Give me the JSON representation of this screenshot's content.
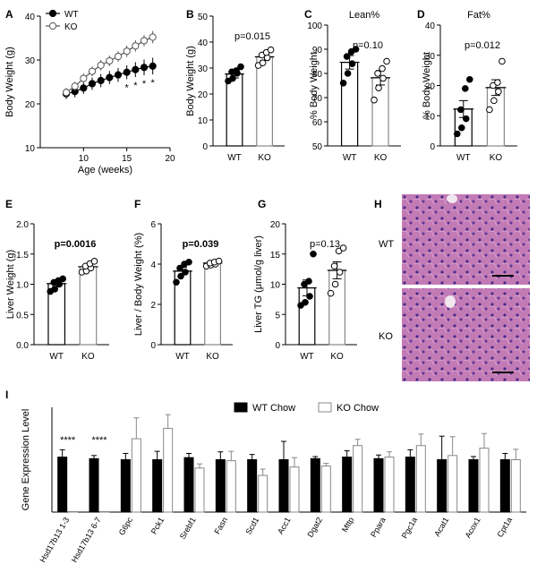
{
  "colors": {
    "wt": "#000000",
    "ko": "#ffffff",
    "ko_stroke": "#888888",
    "axis": "#000000",
    "tissue": "#b56aa6",
    "nuclei": "#4a2b8a"
  },
  "chart_data": [
    {
      "panel": "A",
      "type": "line",
      "ylabel": "Body Weight (g)",
      "xlabel": "Age (weeks)",
      "xlim": [
        5,
        20
      ],
      "ylim": [
        10,
        40
      ],
      "xticks": [
        10,
        15,
        20
      ],
      "yticks": [
        10,
        20,
        30,
        40
      ],
      "x": [
        8,
        9,
        10,
        11,
        12,
        13,
        14,
        15,
        16,
        17,
        18
      ],
      "series": [
        {
          "name": "WT",
          "values": [
            22.3,
            22.8,
            23.6,
            24.6,
            25.3,
            26.0,
            26.6,
            27.2,
            27.8,
            28.3,
            28.6
          ],
          "err": [
            1.2,
            1.3,
            1.3,
            1.4,
            1.5,
            1.5,
            1.6,
            1.6,
            1.7,
            1.8,
            1.9
          ]
        },
        {
          "name": "KO",
          "values": [
            22.6,
            24.0,
            25.8,
            27.4,
            28.8,
            29.8,
            30.8,
            32.0,
            33.2,
            34.4,
            35.2
          ],
          "err": [
            1.0,
            1.0,
            1.1,
            1.1,
            1.2,
            1.2,
            1.2,
            1.3,
            1.3,
            1.3,
            1.4
          ]
        }
      ],
      "sig_label": "*",
      "sig_x": [
        15,
        16,
        17,
        18
      ]
    },
    {
      "panel": "B",
      "type": "bar",
      "ylabel": "Body Weight (g)",
      "ylim": [
        0,
        50
      ],
      "yticks": [
        0,
        10,
        20,
        30,
        40,
        50
      ],
      "categories": [
        "WT",
        "KO"
      ],
      "values": [
        27.7,
        34.3
      ],
      "err": [
        1.5,
        1.4
      ],
      "points": [
        [
          25,
          26,
          28,
          28.5,
          29,
          30.5
        ],
        [
          31,
          32,
          34,
          35,
          36,
          37
        ]
      ],
      "annotation": "p=0.015",
      "annotation_bold": false
    },
    {
      "panel": "C",
      "title": "Lean%",
      "type": "bar",
      "ylabel": "% Body Weight",
      "ylim": [
        50,
        100
      ],
      "yticks": [
        50,
        60,
        70,
        80,
        90,
        100
      ],
      "categories": [
        "WT",
        "KO"
      ],
      "values": [
        84.6,
        78.2
      ],
      "err": [
        2.8,
        3.0
      ],
      "points": [
        [
          76,
          80,
          84,
          87,
          89,
          90
        ],
        [
          69,
          74,
          78,
          80,
          82,
          85
        ]
      ],
      "annotation": "p=0.10",
      "annotation_bold": false
    },
    {
      "panel": "D",
      "title": "Fat%",
      "type": "bar",
      "ylabel": "% Body Weight",
      "ylim": [
        0,
        40
      ],
      "yticks": [
        0,
        10,
        20,
        30,
        40
      ],
      "categories": [
        "WT",
        "KO"
      ],
      "values": [
        12.2,
        19.3
      ],
      "err": [
        2.8,
        2.6
      ],
      "points": [
        [
          4,
          6,
          9,
          12,
          19,
          22
        ],
        [
          12,
          15,
          18,
          20,
          21,
          28
        ]
      ],
      "annotation": "p=0.012",
      "annotation_bold": false
    },
    {
      "panel": "E",
      "type": "bar",
      "ylabel": "Liver Weight (g)",
      "ylim": [
        0,
        2.0
      ],
      "yticks": [
        0.0,
        0.5,
        1.0,
        1.5,
        2.0
      ],
      "categories": [
        "WT",
        "KO"
      ],
      "values": [
        1.01,
        1.29
      ],
      "err": [
        0.05,
        0.04
      ],
      "points": [
        [
          0.88,
          0.92,
          1.0,
          1.03,
          1.06,
          1.09
        ],
        [
          1.2,
          1.22,
          1.27,
          1.3,
          1.34,
          1.38
        ]
      ],
      "annotation": "p=0.0016",
      "annotation_bold": true
    },
    {
      "panel": "F",
      "type": "bar",
      "ylabel": "Liver / Body Weight (%)",
      "ylim": [
        0,
        6
      ],
      "yticks": [
        0,
        2,
        4,
        6
      ],
      "categories": [
        "WT",
        "KO"
      ],
      "values": [
        3.65,
        4.05
      ],
      "err": [
        0.18,
        0.07
      ],
      "points": [
        [
          3.1,
          3.4,
          3.6,
          3.8,
          4.0,
          4.1
        ],
        [
          3.9,
          3.95,
          4.0,
          4.05,
          4.1,
          4.15
        ]
      ],
      "annotation": "p=0.039",
      "annotation_bold": true
    },
    {
      "panel": "G",
      "type": "bar",
      "ylabel": "Liver TG (μmol/g liver)",
      "ylim": [
        0,
        20
      ],
      "yticks": [
        0,
        5,
        10,
        15,
        20
      ],
      "categories": [
        "WT",
        "KO"
      ],
      "values": [
        9.4,
        12.3
      ],
      "err": [
        1.3,
        1.4
      ],
      "points": [
        [
          6.5,
          7.0,
          8.0,
          10.0,
          10.5,
          15.0
        ],
        [
          8.5,
          10.0,
          12.0,
          13.0,
          15.5,
          16.0
        ]
      ],
      "annotation": "p=0.13",
      "annotation_bold": false
    },
    {
      "panel": "I",
      "type": "bar",
      "ylabel": "Gene Expression Level",
      "ylim": [
        0,
        2.0
      ],
      "categories": [
        "Hsd17b13 1-3",
        "Hsd17b13 6-7",
        "G6pc",
        "Pck1",
        "Srebf1",
        "Fasn",
        "Scd1",
        "Acc1",
        "Dgat2",
        "Mttp",
        "Ppara",
        "Pgc1a",
        "Acat1",
        "Acox1",
        "Cpt1a"
      ],
      "series": [
        {
          "name": "WT Chow",
          "values": [
            1.05,
            1.02,
            1.0,
            1.0,
            1.04,
            1.0,
            1.0,
            1.0,
            1.02,
            1.05,
            1.02,
            1.05,
            1.0,
            1.0,
            1.0
          ],
          "err": [
            0.14,
            0.06,
            0.12,
            0.16,
            0.08,
            0.15,
            0.1,
            0.35,
            0.04,
            0.12,
            0.07,
            0.14,
            0.45,
            0.06,
            0.12
          ]
        },
        {
          "name": "KO Chow",
          "values": [
            0.01,
            0.01,
            1.4,
            1.6,
            0.84,
            0.98,
            0.7,
            0.86,
            0.88,
            1.27,
            1.05,
            1.27,
            1.08,
            1.22,
            1.0
          ],
          "err": [
            0,
            0,
            0.4,
            0.26,
            0.08,
            0.18,
            0.12,
            0.18,
            0.05,
            0.12,
            0.1,
            0.22,
            0.36,
            0.28,
            0.2
          ]
        }
      ],
      "sig": [
        {
          "category": "Hsd17b13 1-3",
          "label": "****"
        },
        {
          "category": "Hsd17b13 6-7",
          "label": "****"
        }
      ]
    }
  ],
  "histology": {
    "panel": "H",
    "rows": [
      "WT",
      "KO"
    ]
  }
}
